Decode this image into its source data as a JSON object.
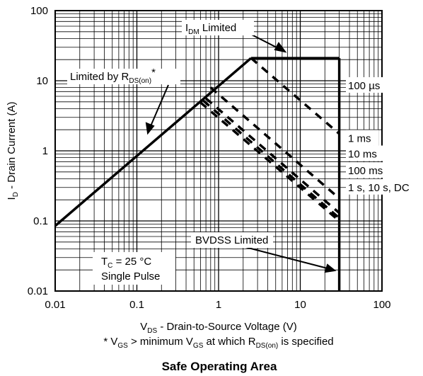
{
  "chart_data": {
    "type": "line",
    "title": "Safe Operating Area",
    "xlabel": {
      "main": "V",
      "sub": "DS",
      "rest": " - Drain-to-Source Voltage (V)"
    },
    "ylabel": {
      "main": "I",
      "sub": "D",
      "rest": " - Drain Current (A)"
    },
    "x_scale": "log",
    "y_scale": "log",
    "xlim": [
      0.01,
      100
    ],
    "ylim": [
      0.01,
      100
    ],
    "x_ticks": [
      "0.01",
      "0.1",
      "1",
      "10",
      "100"
    ],
    "y_ticks": [
      "0.01",
      "0.1",
      "1",
      "10",
      "100"
    ],
    "grid": true,
    "series": [
      {
        "label": "rds_limit",
        "style": "solid",
        "points": [
          [
            0.01,
            0.085
          ],
          [
            2.5,
            21
          ]
        ]
      },
      {
        "label": "idm_limit",
        "style": "solid",
        "points": [
          [
            2.5,
            21
          ],
          [
            30,
            21
          ]
        ]
      },
      {
        "label": "bvdss_limit",
        "style": "solid",
        "points": [
          [
            30,
            21
          ],
          [
            30,
            0.01
          ]
        ]
      },
      {
        "label": "100 µs",
        "style": "dashed",
        "points": [
          [
            2.5,
            21
          ],
          [
            30,
            1.75
          ]
        ]
      },
      {
        "label": "1 ms",
        "style": "dashed",
        "points": [
          [
            0.8,
            8.0
          ],
          [
            30,
            0.21
          ]
        ]
      },
      {
        "label": "10 ms",
        "style": "dashed",
        "points": [
          [
            0.7,
            5.6
          ],
          [
            30,
            0.13
          ]
        ]
      },
      {
        "label": "100 ms",
        "style": "dashed",
        "points": [
          [
            0.65,
            5.2
          ],
          [
            30,
            0.11
          ]
        ]
      },
      {
        "label": "1 s, 10 s, DC",
        "style": "dashed",
        "points": [
          [
            0.6,
            4.9
          ],
          [
            30,
            0.1
          ]
        ]
      }
    ],
    "annotations": {
      "idm": {
        "main": "I",
        "sub": "DM",
        "rest": " Limited"
      },
      "rds": {
        "main": "Limited by R",
        "sub": "DS(on)",
        "rest": "*"
      },
      "bvdss": "BVDSS Limited",
      "tc": {
        "main": "T",
        "sub": "C",
        "rest": " = 25 °C"
      },
      "pulse": "Single Pulse",
      "curve_labels": [
        "100 µs",
        "1 ms",
        "10 ms",
        "100 ms",
        "1 s, 10 s, DC"
      ]
    },
    "footnote": {
      "p1": "* V",
      "s1": "GS",
      "p2": " > minimum V",
      "s2": "GS",
      "p3": " at which R",
      "s3": "DS(on)",
      "p4": " is specified"
    }
  }
}
